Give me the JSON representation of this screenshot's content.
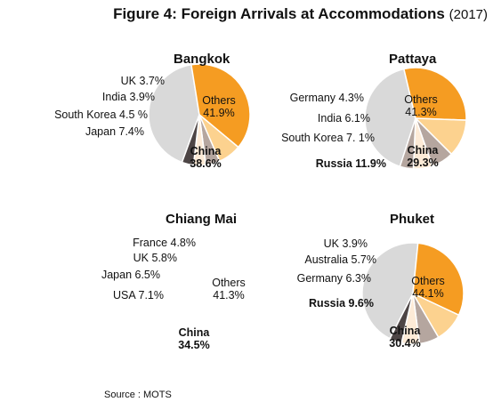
{
  "figure": {
    "title": "Figure 4: Foreign Arrivals at Accommodations",
    "year": "(2017)",
    "source": "Source : MOTS"
  },
  "colors": {
    "Others": "#d9d9d9",
    "China": "#f59c22",
    "Japan": "#fcd28f",
    "Russia": "#fcd28f",
    "South Korea": "#b5a69f",
    "Germany": "#b5a69f",
    "India": "#fdebd7",
    "Australia": "#fdebd7",
    "UK": "#4d4545",
    "stroke": "#ffffff"
  },
  "chart_data": [
    {
      "type": "pie",
      "title": "Bangkok",
      "slices": [
        {
          "name": "Others",
          "value": 41.9,
          "label": "Others\n41.9%"
        },
        {
          "name": "China",
          "value": 38.6,
          "label": "China\n38.6%"
        },
        {
          "name": "Japan",
          "value": 7.4,
          "label": "Japan 7.4%"
        },
        {
          "name": "South Korea",
          "value": 4.5,
          "label": "South Korea 4.5 %"
        },
        {
          "name": "India",
          "value": 3.9,
          "label": "India 3.9%"
        },
        {
          "name": "UK",
          "value": 3.7,
          "label": "UK 3.7%"
        }
      ]
    },
    {
      "type": "pie",
      "title": "Pattaya",
      "slices": [
        {
          "name": "Others",
          "value": 41.3,
          "label": "Others\n41.3%"
        },
        {
          "name": "China",
          "value": 29.3,
          "label": "China\n29.3%"
        },
        {
          "name": "Russia",
          "value": 11.9,
          "label": "Russia 11.9%"
        },
        {
          "name": "South Korea",
          "value": 7.1,
          "label": "South Korea 7. 1%"
        },
        {
          "name": "India",
          "value": 6.1,
          "label": "India 6.1%"
        },
        {
          "name": "Germany",
          "value": 4.3,
          "label": "Germany 4.3%"
        }
      ]
    },
    {
      "type": "pie",
      "title": "Chiang Mai",
      "slices": [
        {
          "name": "Others",
          "value": 41.3,
          "label": "Others\n41.3%"
        },
        {
          "name": "China",
          "value": 34.5,
          "label": "China\n34.5%"
        },
        {
          "name": "USA",
          "value": 7.1,
          "label": "USA 7.1%"
        },
        {
          "name": "Japan",
          "value": 6.5,
          "label": "Japan 6.5%"
        },
        {
          "name": "UK",
          "value": 5.8,
          "label": "UK 5.8%"
        },
        {
          "name": "France",
          "value": 4.8,
          "label": "France 4.8%"
        }
      ]
    },
    {
      "type": "pie",
      "title": "Phuket",
      "slices": [
        {
          "name": "Others",
          "value": 44.1,
          "label": "Others\n44.1%"
        },
        {
          "name": "China",
          "value": 30.4,
          "label": "China\n30.4%"
        },
        {
          "name": "Russia",
          "value": 9.6,
          "label": "Russia 9.6%"
        },
        {
          "name": "Germany",
          "value": 6.3,
          "label": "Germany 6.3%"
        },
        {
          "name": "Australia",
          "value": 5.7,
          "label": "Australia 5.7%"
        },
        {
          "name": "UK",
          "value": 3.9,
          "label": "UK 3.9%"
        }
      ]
    }
  ]
}
